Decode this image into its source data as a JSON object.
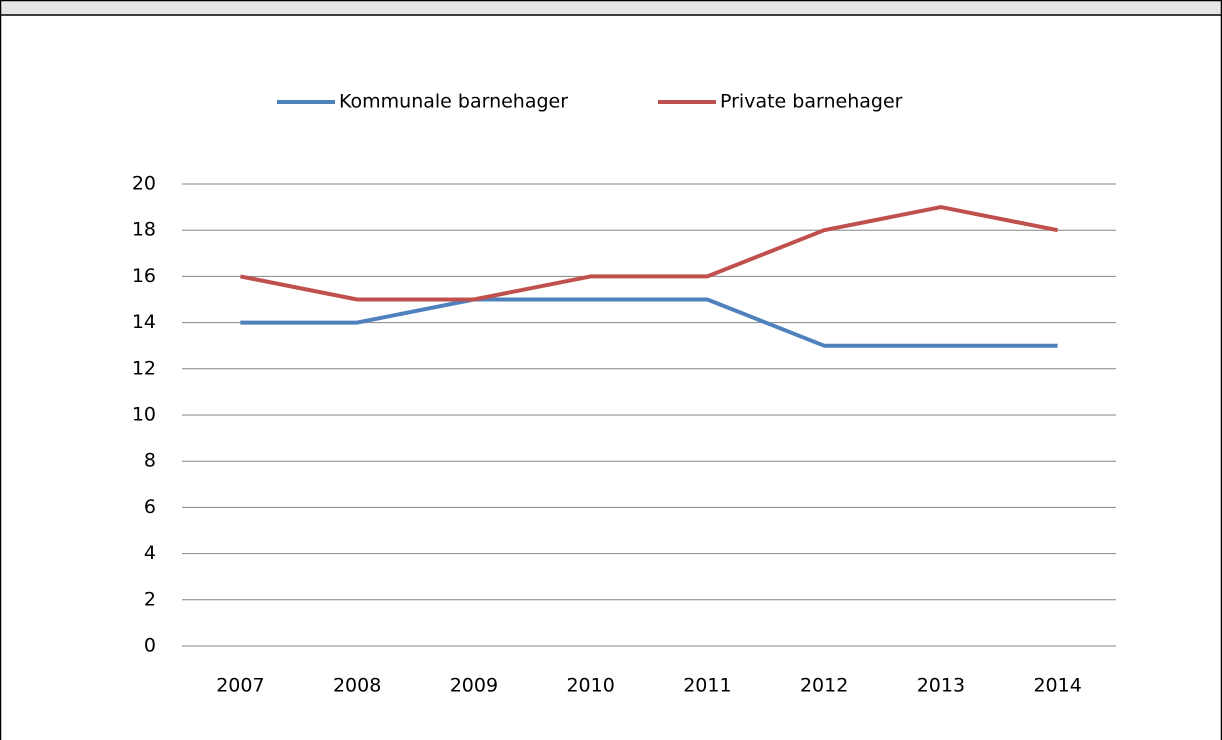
{
  "chart_data": {
    "type": "line",
    "categories": [
      "2007",
      "2008",
      "2009",
      "2010",
      "2011",
      "2012",
      "2013",
      "2014"
    ],
    "series": [
      {
        "name": "Kommunale barnehager",
        "color": "#4f81bd",
        "values": [
          14,
          14,
          15,
          15,
          15,
          13,
          13,
          13
        ]
      },
      {
        "name": "Private barnehager",
        "color": "#c0504d",
        "values": [
          16,
          15,
          15,
          16,
          16,
          18,
          19,
          18
        ]
      }
    ],
    "ylim": [
      0,
      20
    ],
    "yticks": [
      0,
      2,
      4,
      6,
      8,
      10,
      12,
      14,
      16,
      18,
      20
    ],
    "grid": true,
    "legend": "top"
  }
}
